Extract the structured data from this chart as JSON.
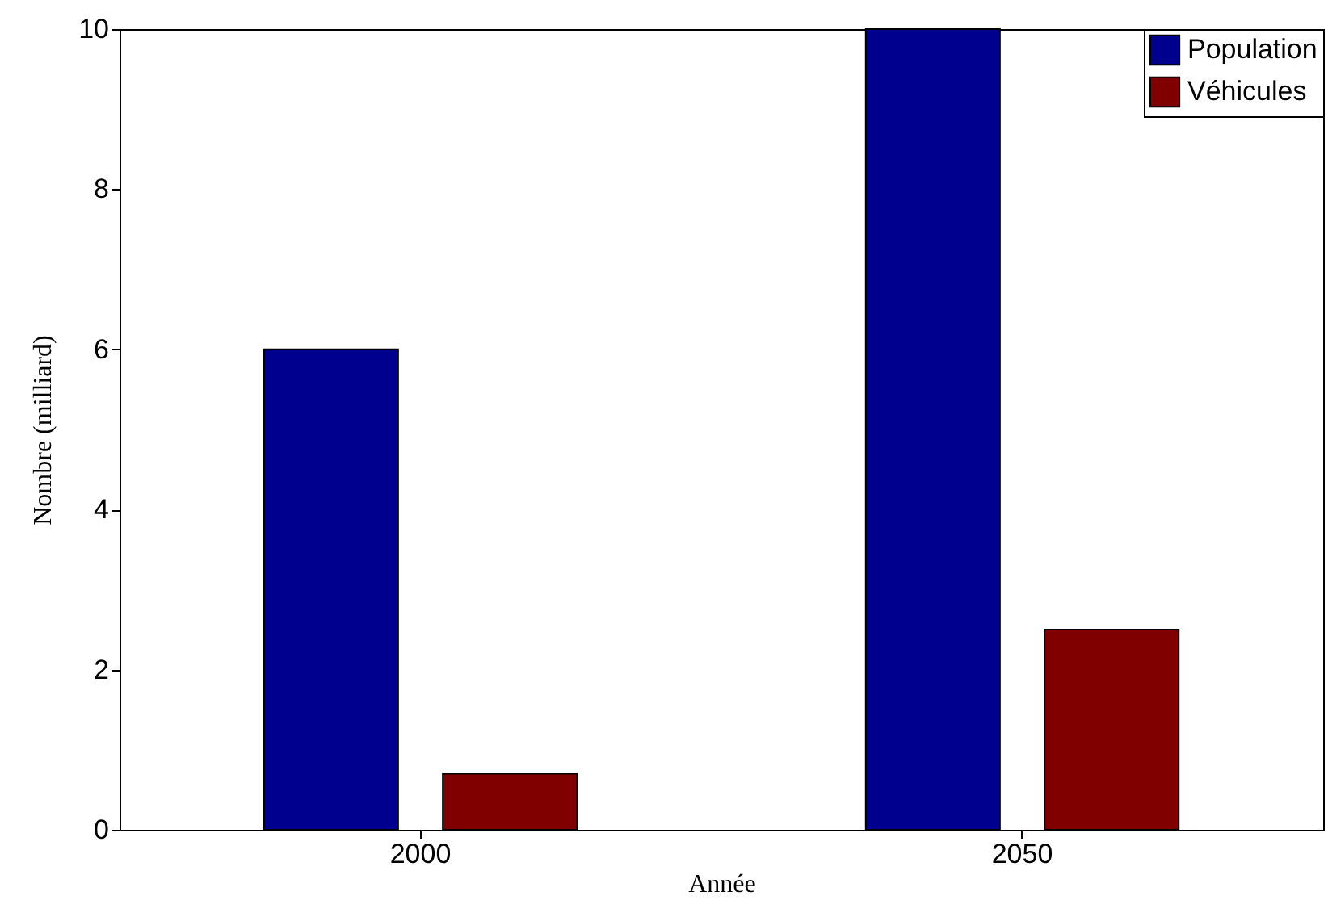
{
  "chart_data": {
    "type": "bar",
    "xlabel": "Année",
    "ylabel": "Nombre (milliard)",
    "categories": [
      "2000",
      "2050"
    ],
    "series": [
      {
        "name": "Population",
        "color": "#00008f",
        "values": [
          6,
          10
        ]
      },
      {
        "name": "Véhicules",
        "color": "#800000",
        "values": [
          0.7,
          2.5
        ]
      }
    ],
    "ylim": [
      0,
      10
    ],
    "yticks": [
      0,
      2,
      4,
      6,
      8,
      10
    ],
    "grid": false,
    "legend": "top right"
  }
}
